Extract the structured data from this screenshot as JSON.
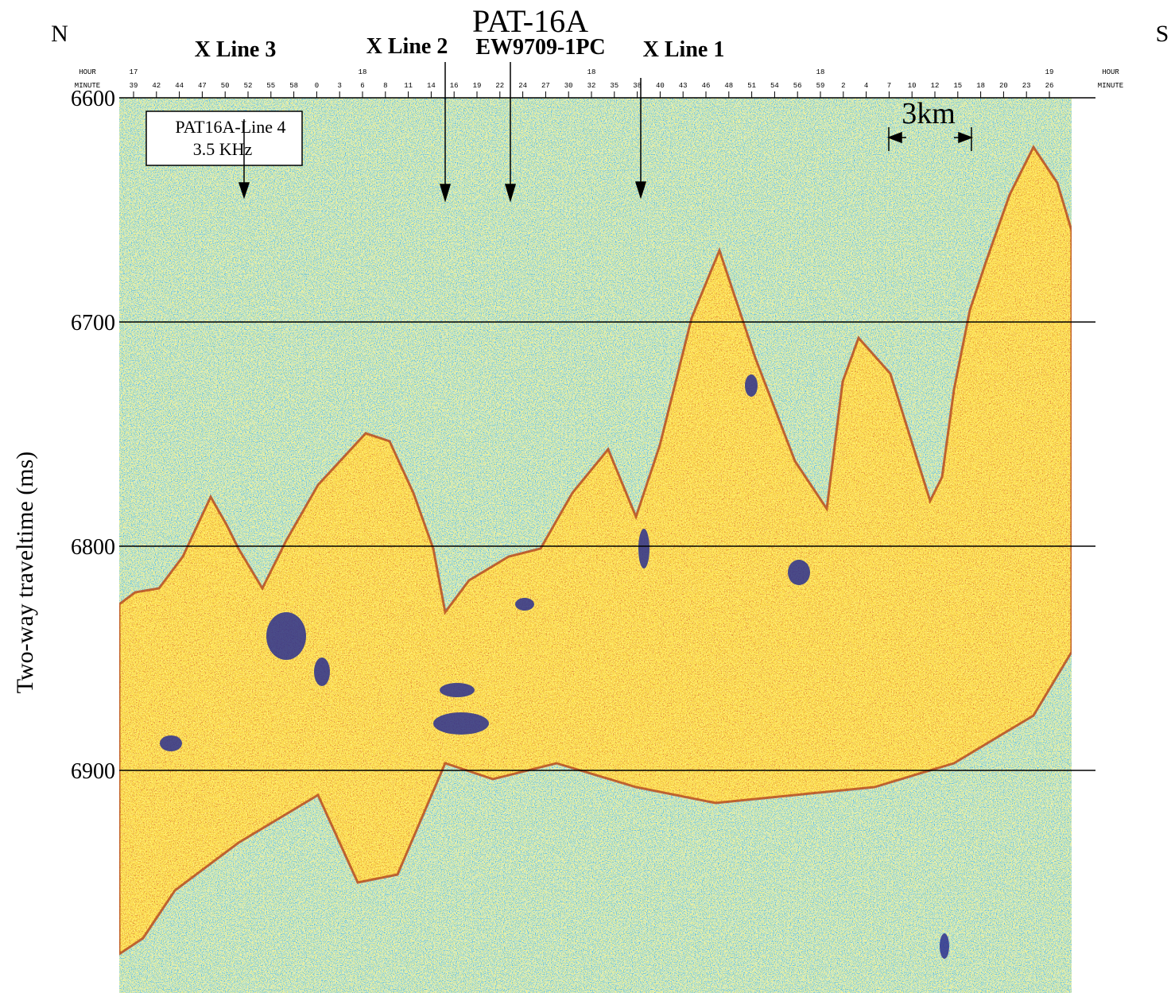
{
  "header": {
    "left": "N",
    "right": "S",
    "title": "PAT-16A",
    "subtitle": "EW9709-1PC",
    "crossings": [
      "X Line 3",
      "X Line 2",
      "X Line 1"
    ],
    "box": [
      "PAT16A-Line 4",
      "3.5 KHz"
    ],
    "scale_bar": "3km"
  },
  "time_axis": {
    "row_labels": {
      "hour": "HOUR",
      "minute": "MINUTE"
    },
    "hours": [
      "17",
      null,
      null,
      null,
      null,
      null,
      null,
      null,
      null,
      null,
      "18",
      null,
      null,
      null,
      null,
      null,
      null,
      null,
      null,
      null,
      "18",
      null,
      null,
      null,
      null,
      null,
      null,
      null,
      null,
      null,
      "18",
      null,
      null,
      null,
      null,
      null,
      null,
      null,
      null,
      null,
      "19"
    ],
    "minutes": [
      "39",
      "42",
      "44",
      "47",
      "50",
      "52",
      "55",
      "58",
      "0",
      "3",
      "6",
      "8",
      "11",
      "14",
      "16",
      "19",
      "22",
      "24",
      "27",
      "30",
      "32",
      "35",
      "38",
      "40",
      "43",
      "46",
      "48",
      "51",
      "54",
      "56",
      "59",
      "2",
      "4",
      "7",
      "10",
      "12",
      "15",
      "18",
      "20",
      "23",
      "26"
    ]
  },
  "y_axis": {
    "label": "Two-way traveltime (ms)",
    "lim": [
      6600,
      7000
    ],
    "ticks": [
      6600,
      6700,
      6800,
      6900
    ]
  }
}
